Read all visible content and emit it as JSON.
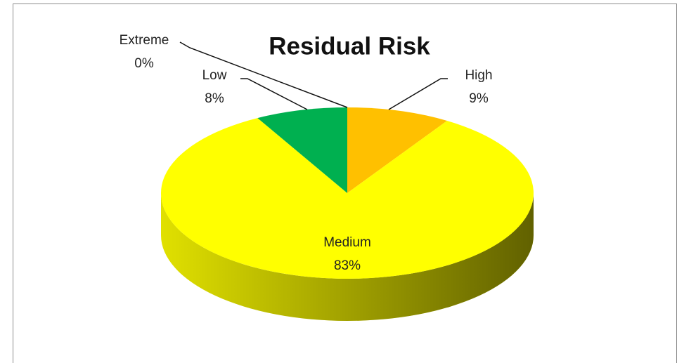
{
  "chart_data": {
    "type": "pie",
    "title": "Residual Risk",
    "categories": [
      "High",
      "Medium",
      "Low",
      "Extreme"
    ],
    "values": [
      9,
      83,
      8,
      0
    ],
    "value_labels": [
      "9%",
      "83%",
      "8%",
      "0%"
    ],
    "colors": [
      "#ffc000",
      "#ffff00",
      "#00b050",
      "#ff0000"
    ]
  }
}
